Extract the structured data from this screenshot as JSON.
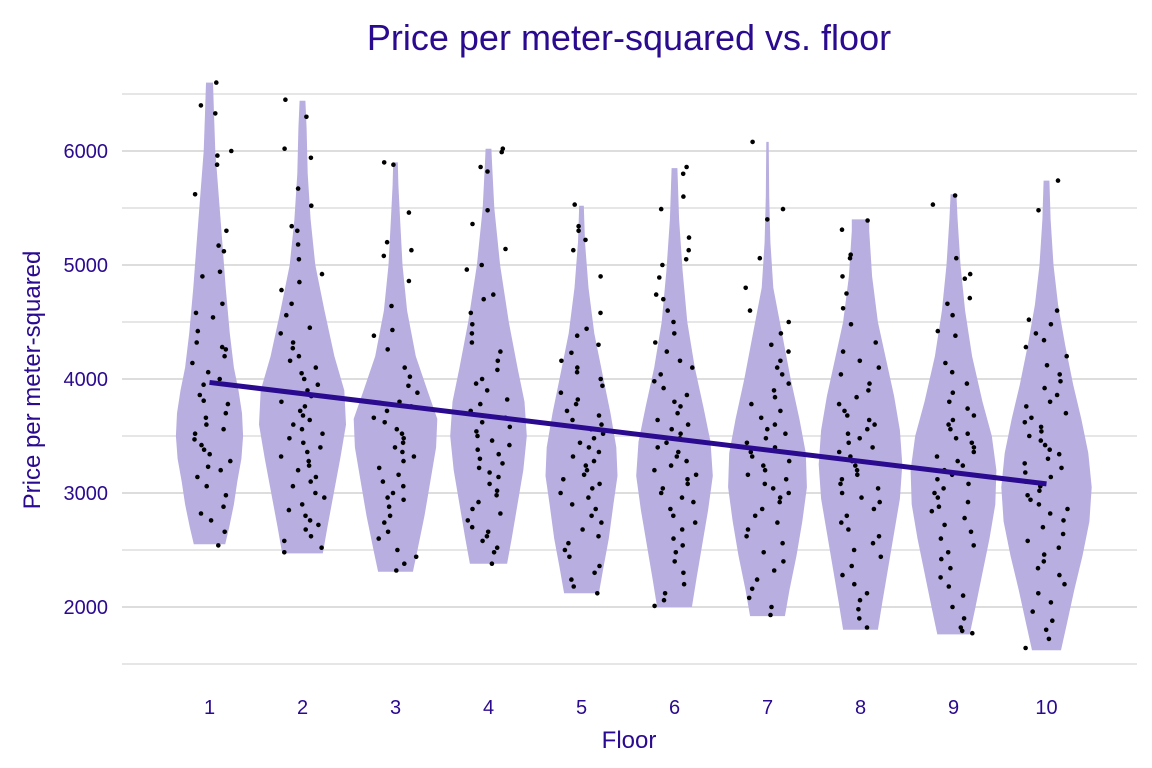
{
  "chart_data": {
    "type": "violin",
    "title": "Price per meter-squared vs. floor",
    "xlabel": "Floor",
    "ylabel": "Price per meter-squared",
    "categories": [
      "1",
      "2",
      "3",
      "4",
      "5",
      "6",
      "7",
      "8",
      "9",
      "10"
    ],
    "y_ticks": [
      2000,
      3000,
      4000,
      5000,
      6000
    ],
    "ylim": [
      1500,
      6650
    ],
    "grid": true,
    "colors": {
      "text": "#2a0a8f",
      "violin_fill": "#b8aee0",
      "trend": "#2a0a8f",
      "points": "#000000",
      "grid": "#dddddd"
    },
    "violins": [
      {
        "floor": "1",
        "min": 2550,
        "max": 6600,
        "profile": [
          [
            2550,
            0.27
          ],
          [
            2700,
            0.34
          ],
          [
            2900,
            0.42
          ],
          [
            3100,
            0.48
          ],
          [
            3300,
            0.55
          ],
          [
            3500,
            0.58
          ],
          [
            3700,
            0.56
          ],
          [
            3900,
            0.5
          ],
          [
            4100,
            0.42
          ],
          [
            4400,
            0.35
          ],
          [
            4800,
            0.28
          ],
          [
            5200,
            0.22
          ],
          [
            5600,
            0.16
          ],
          [
            6000,
            0.1
          ],
          [
            6300,
            0.08
          ],
          [
            6600,
            0.06
          ]
        ]
      },
      {
        "floor": "2",
        "min": 2470,
        "max": 6440,
        "profile": [
          [
            2470,
            0.35
          ],
          [
            2700,
            0.43
          ],
          [
            3000,
            0.54
          ],
          [
            3300,
            0.65
          ],
          [
            3600,
            0.75
          ],
          [
            3900,
            0.72
          ],
          [
            4200,
            0.55
          ],
          [
            4600,
            0.38
          ],
          [
            5000,
            0.22
          ],
          [
            5400,
            0.14
          ],
          [
            5800,
            0.09
          ],
          [
            6200,
            0.07
          ],
          [
            6440,
            0.05
          ]
        ]
      },
      {
        "floor": "3",
        "min": 2310,
        "max": 5900,
        "profile": [
          [
            2310,
            0.3
          ],
          [
            2500,
            0.38
          ],
          [
            2800,
            0.5
          ],
          [
            3100,
            0.6
          ],
          [
            3400,
            0.7
          ],
          [
            3650,
            0.72
          ],
          [
            3900,
            0.55
          ],
          [
            4200,
            0.35
          ],
          [
            4600,
            0.2
          ],
          [
            5000,
            0.12
          ],
          [
            5400,
            0.08
          ],
          [
            5700,
            0.05
          ],
          [
            5900,
            0.04
          ]
        ]
      },
      {
        "floor": "4",
        "min": 2380,
        "max": 6020,
        "profile": [
          [
            2380,
            0.32
          ],
          [
            2600,
            0.4
          ],
          [
            2900,
            0.5
          ],
          [
            3200,
            0.6
          ],
          [
            3500,
            0.66
          ],
          [
            3800,
            0.62
          ],
          [
            4100,
            0.5
          ],
          [
            4500,
            0.35
          ],
          [
            5000,
            0.2
          ],
          [
            5500,
            0.1
          ],
          [
            5900,
            0.06
          ],
          [
            6020,
            0.05
          ]
        ]
      },
      {
        "floor": "5",
        "min": 2120,
        "max": 5520,
        "profile": [
          [
            2120,
            0.3
          ],
          [
            2350,
            0.38
          ],
          [
            2600,
            0.47
          ],
          [
            2900,
            0.55
          ],
          [
            3150,
            0.62
          ],
          [
            3400,
            0.6
          ],
          [
            3700,
            0.5
          ],
          [
            4000,
            0.38
          ],
          [
            4400,
            0.22
          ],
          [
            4800,
            0.12
          ],
          [
            5200,
            0.06
          ],
          [
            5520,
            0.04
          ]
        ]
      },
      {
        "floor": "6",
        "min": 2000,
        "max": 5850,
        "profile": [
          [
            2000,
            0.3
          ],
          [
            2250,
            0.38
          ],
          [
            2550,
            0.48
          ],
          [
            2850,
            0.58
          ],
          [
            3150,
            0.66
          ],
          [
            3450,
            0.62
          ],
          [
            3750,
            0.5
          ],
          [
            4100,
            0.35
          ],
          [
            4500,
            0.22
          ],
          [
            4950,
            0.14
          ],
          [
            5400,
            0.08
          ],
          [
            5850,
            0.05
          ]
        ]
      },
      {
        "floor": "7",
        "min": 1920,
        "max": 6080,
        "profile": [
          [
            1920,
            0.3
          ],
          [
            2150,
            0.38
          ],
          [
            2450,
            0.5
          ],
          [
            2750,
            0.6
          ],
          [
            3050,
            0.68
          ],
          [
            3350,
            0.66
          ],
          [
            3650,
            0.55
          ],
          [
            4000,
            0.4
          ],
          [
            4400,
            0.25
          ],
          [
            4800,
            0.1
          ],
          [
            5200,
            0.05
          ],
          [
            5600,
            0.03
          ],
          [
            6080,
            0.02
          ]
        ]
      },
      {
        "floor": "8",
        "min": 1800,
        "max": 5400,
        "profile": [
          [
            1800,
            0.3
          ],
          [
            2050,
            0.38
          ],
          [
            2350,
            0.48
          ],
          [
            2650,
            0.58
          ],
          [
            2950,
            0.68
          ],
          [
            3250,
            0.72
          ],
          [
            3550,
            0.68
          ],
          [
            3850,
            0.58
          ],
          [
            4150,
            0.45
          ],
          [
            4500,
            0.3
          ],
          [
            4900,
            0.2
          ],
          [
            5300,
            0.15
          ],
          [
            5400,
            0.15
          ]
        ]
      },
      {
        "floor": "9",
        "min": 1760,
        "max": 5620,
        "profile": [
          [
            1760,
            0.28
          ],
          [
            2000,
            0.38
          ],
          [
            2300,
            0.5
          ],
          [
            2600,
            0.62
          ],
          [
            2900,
            0.72
          ],
          [
            3200,
            0.74
          ],
          [
            3500,
            0.66
          ],
          [
            3800,
            0.5
          ],
          [
            4200,
            0.32
          ],
          [
            4600,
            0.2
          ],
          [
            5000,
            0.12
          ],
          [
            5400,
            0.07
          ],
          [
            5620,
            0.05
          ]
        ]
      },
      {
        "floor": "10",
        "min": 1620,
        "max": 5740,
        "profile": [
          [
            1620,
            0.25
          ],
          [
            1850,
            0.35
          ],
          [
            2150,
            0.48
          ],
          [
            2450,
            0.62
          ],
          [
            2750,
            0.74
          ],
          [
            3050,
            0.78
          ],
          [
            3350,
            0.72
          ],
          [
            3650,
            0.6
          ],
          [
            3950,
            0.46
          ],
          [
            4300,
            0.32
          ],
          [
            4650,
            0.2
          ],
          [
            5000,
            0.12
          ],
          [
            5400,
            0.07
          ],
          [
            5740,
            0.05
          ]
        ]
      }
    ],
    "trend_line": {
      "x": [
        "1",
        "10"
      ],
      "y": [
        3970,
        3080
      ]
    },
    "points": {
      "1": [
        6600,
        6400,
        6330,
        6000,
        5960,
        5880,
        5620,
        5300,
        5170,
        5120,
        4940,
        4900,
        4660,
        4580,
        4540,
        4420,
        4320,
        4280,
        4260,
        4200,
        4140,
        4060,
        4000,
        3950,
        3860,
        3810,
        3780,
        3700,
        3660,
        3600,
        3560,
        3520,
        3470,
        3420,
        3380,
        3340,
        3280,
        3230,
        3200,
        3140,
        3060,
        2980,
        2880,
        2820,
        2760,
        2660,
        2540
      ],
      "2": [
        6450,
        6300,
        6020,
        5940,
        5670,
        5520,
        5340,
        5300,
        5180,
        5050,
        4920,
        4850,
        4780,
        4660,
        4560,
        4450,
        4400,
        4320,
        4270,
        4200,
        4160,
        4100,
        4050,
        4000,
        3950,
        3900,
        3850,
        3800,
        3760,
        3720,
        3680,
        3640,
        3600,
        3560,
        3520,
        3480,
        3440,
        3400,
        3360,
        3320,
        3280,
        3240,
        3200,
        3140,
        3100,
        3060,
        3000,
        2960,
        2900,
        2850,
        2800,
        2760,
        2720,
        2680,
        2620,
        2580,
        2520,
        2480
      ],
      "3": [
        5900,
        5880,
        5460,
        5200,
        5130,
        5080,
        4860,
        4640,
        4430,
        4380,
        4260,
        4100,
        4020,
        3940,
        3880,
        3800,
        3760,
        3720,
        3660,
        3620,
        3560,
        3520,
        3480,
        3440,
        3400,
        3360,
        3320,
        3280,
        3220,
        3160,
        3100,
        3060,
        3000,
        2960,
        2940,
        2880,
        2800,
        2740,
        2660,
        2600,
        2500,
        2440,
        2380,
        2320
      ],
      "4": [
        6020,
        5990,
        5860,
        5820,
        5480,
        5360,
        5140,
        5000,
        4960,
        4740,
        4700,
        4580,
        4480,
        4400,
        4320,
        4240,
        4160,
        4080,
        4000,
        3960,
        3900,
        3820,
        3780,
        3720,
        3660,
        3620,
        3580,
        3540,
        3500,
        3460,
        3420,
        3380,
        3340,
        3300,
        3260,
        3220,
        3180,
        3140,
        3080,
        3020,
        2980,
        2920,
        2860,
        2820,
        2760,
        2700,
        2660,
        2620,
        2580,
        2520,
        2480,
        2380
      ],
      "5": [
        5530,
        5340,
        5300,
        5220,
        5130,
        4900,
        4580,
        4440,
        4380,
        4300,
        4230,
        4160,
        4100,
        4060,
        4000,
        3940,
        3880,
        3820,
        3780,
        3720,
        3680,
        3640,
        3600,
        3560,
        3520,
        3480,
        3440,
        3400,
        3360,
        3320,
        3280,
        3240,
        3200,
        3160,
        3120,
        3080,
        3040,
        3000,
        2960,
        2900,
        2860,
        2800,
        2740,
        2680,
        2620,
        2560,
        2500,
        2440,
        2360,
        2300,
        2240,
        2180,
        2120
      ],
      "6": [
        5860,
        5800,
        5600,
        5490,
        5240,
        5130,
        5050,
        5000,
        4890,
        4740,
        4700,
        4600,
        4500,
        4400,
        4320,
        4240,
        4160,
        4100,
        4040,
        3980,
        3920,
        3860,
        3800,
        3760,
        3700,
        3640,
        3600,
        3560,
        3520,
        3480,
        3440,
        3400,
        3360,
        3320,
        3280,
        3240,
        3200,
        3160,
        3120,
        3080,
        3040,
        3000,
        2960,
        2920,
        2860,
        2800,
        2740,
        2680,
        2600,
        2540,
        2480,
        2400,
        2300,
        2200,
        2120,
        2060,
        2010
      ],
      "7": [
        6080,
        5490,
        5400,
        5060,
        4800,
        4600,
        4500,
        4400,
        4300,
        4240,
        4160,
        4100,
        4040,
        3960,
        3900,
        3840,
        3780,
        3720,
        3660,
        3600,
        3560,
        3520,
        3480,
        3440,
        3400,
        3360,
        3320,
        3280,
        3240,
        3200,
        3160,
        3120,
        3080,
        3040,
        3000,
        2960,
        2920,
        2860,
        2800,
        2740,
        2680,
        2620,
        2560,
        2480,
        2400,
        2320,
        2240,
        2160,
        2080,
        2000,
        1930
      ],
      "8": [
        5390,
        5310,
        5090,
        5060,
        4900,
        4750,
        4620,
        4480,
        4320,
        4240,
        4160,
        4100,
        4040,
        3960,
        3900,
        3840,
        3780,
        3720,
        3680,
        3640,
        3600,
        3560,
        3520,
        3480,
        3440,
        3400,
        3360,
        3320,
        3280,
        3240,
        3200,
        3160,
        3120,
        3080,
        3040,
        3000,
        2960,
        2920,
        2860,
        2800,
        2740,
        2680,
        2620,
        2560,
        2500,
        2440,
        2360,
        2280,
        2200,
        2120,
        2060,
        1980,
        1900,
        1820
      ],
      "9": [
        5610,
        5530,
        5060,
        4920,
        4880,
        4710,
        4660,
        4560,
        4420,
        4380,
        4140,
        4060,
        3960,
        3880,
        3800,
        3740,
        3680,
        3640,
        3600,
        3560,
        3520,
        3480,
        3440,
        3400,
        3360,
        3320,
        3280,
        3240,
        3200,
        3160,
        3120,
        3080,
        3040,
        3000,
        2960,
        2920,
        2880,
        2840,
        2780,
        2720,
        2660,
        2600,
        2540,
        2480,
        2420,
        2340,
        2260,
        2180,
        2100,
        2000,
        1900,
        1820,
        1790,
        1770
      ],
      "10": [
        5740,
        5480,
        4600,
        4520,
        4480,
        4400,
        4340,
        4280,
        4200,
        4120,
        4040,
        3980,
        3920,
        3860,
        3800,
        3760,
        3700,
        3660,
        3620,
        3580,
        3540,
        3500,
        3460,
        3420,
        3380,
        3340,
        3300,
        3260,
        3220,
        3180,
        3140,
        3100,
        3060,
        3020,
        2980,
        2940,
        2900,
        2860,
        2820,
        2760,
        2700,
        2640,
        2580,
        2520,
        2460,
        2400,
        2340,
        2280,
        2200,
        2120,
        2040,
        1960,
        1880,
        1800,
        1720,
        1640
      ]
    }
  }
}
